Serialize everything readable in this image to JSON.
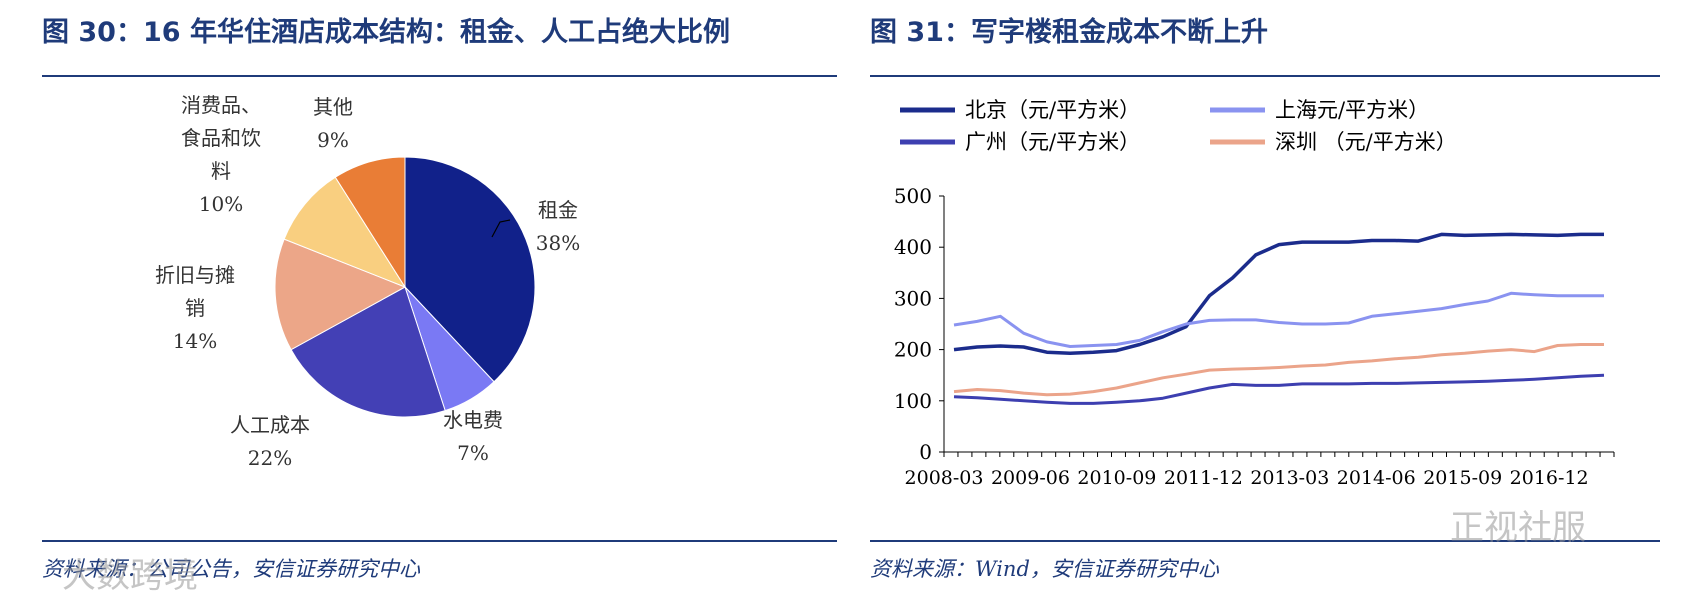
{
  "left_panel": {
    "title": "图 30：16 年华住酒店成本结构：租金、人工占绝大比例",
    "source": "资料来源：公司公告，安信证券研究中心"
  },
  "right_panel": {
    "title": "图 31：写字楼租金成本不断上升",
    "source": "资料来源：Wind，安信证券研究中心"
  },
  "watermarks": {
    "left": "大数跨境",
    "right": "正视社服"
  },
  "chart_data": [
    {
      "type": "pie",
      "slices": [
        {
          "label": "租金",
          "label_lines": [
            "租金"
          ],
          "value": 38,
          "value_text": "38%",
          "color": "#11218a"
        },
        {
          "label": "水电费",
          "label_lines": [
            "水电费"
          ],
          "value": 7,
          "value_text": "7%",
          "color": "#7a79f4"
        },
        {
          "label": "人工成本",
          "label_lines": [
            "人工成本"
          ],
          "value": 22,
          "value_text": "22%",
          "color": "#4340b5"
        },
        {
          "label": "折旧与摊销",
          "label_lines": [
            "折旧与摊",
            "销"
          ],
          "value": 14,
          "value_text": "14%",
          "color": "#eca688"
        },
        {
          "label": "消费品、食品和饮料",
          "label_lines": [
            "消费品、",
            "食品和饮",
            "料"
          ],
          "value": 10,
          "value_text": "10%",
          "color": "#f9cf80"
        },
        {
          "label": "其他",
          "label_lines": [
            "其他"
          ],
          "value": 9,
          "value_text": "9%",
          "color": "#e97d36"
        }
      ]
    },
    {
      "type": "line",
      "x_ticks": [
        "2008-03",
        "2009-06",
        "2010-09",
        "2011-12",
        "2013-03",
        "2014-06",
        "2015-09",
        "2016-12"
      ],
      "ylim": [
        0,
        500
      ],
      "yticks": [
        0,
        100,
        200,
        300,
        400,
        500
      ],
      "legend_position": "top",
      "series": [
        {
          "name": "北京（元/平方米）",
          "color": "#1b2c8c",
          "values": [
            200,
            205,
            207,
            205,
            195,
            193,
            195,
            198,
            210,
            225,
            245,
            305,
            340,
            385,
            405,
            410,
            410,
            410,
            413,
            413,
            412,
            425,
            423,
            424,
            425,
            424,
            423,
            425,
            425
          ]
        },
        {
          "name": "上海元/平方米）",
          "color": "#8a93f0",
          "values": [
            248,
            255,
            265,
            232,
            215,
            206,
            208,
            210,
            218,
            235,
            250,
            257,
            258,
            258,
            253,
            250,
            250,
            252,
            265,
            270,
            275,
            280,
            288,
            295,
            310,
            307,
            305,
            305,
            305
          ]
        },
        {
          "name": "广州（元/平方米）",
          "color": "#3d3fb0",
          "values": [
            108,
            106,
            103,
            100,
            97,
            95,
            95,
            97,
            100,
            105,
            115,
            125,
            132,
            130,
            130,
            133,
            133,
            133,
            134,
            134,
            135,
            136,
            137,
            138,
            140,
            142,
            145,
            148,
            150
          ]
        },
        {
          "name": "深圳 （元/平方米）",
          "color": "#eba48a",
          "values": [
            118,
            122,
            120,
            115,
            112,
            113,
            118,
            125,
            135,
            145,
            152,
            160,
            162,
            163,
            165,
            168,
            170,
            175,
            178,
            182,
            185,
            190,
            193,
            197,
            200,
            196,
            208,
            210,
            210
          ]
        }
      ]
    }
  ]
}
